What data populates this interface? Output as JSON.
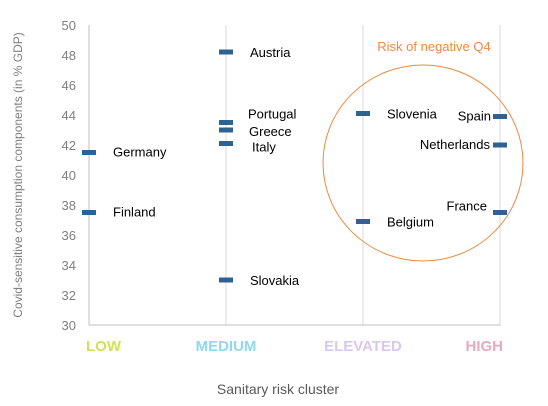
{
  "chart_data": {
    "type": "scatter",
    "xlabel": "Sanitary risk cluster",
    "ylabel": "Covid-sensitive consumption components  (in % GDP)",
    "ylim": [
      30,
      50
    ],
    "yticks": [
      "30",
      "32",
      "34",
      "36",
      "38",
      "40",
      "42",
      "44",
      "46",
      "48",
      "50"
    ],
    "grid": "vertical lines at categories",
    "categories": [
      {
        "label": "LOW",
        "color": "#d4e157"
      },
      {
        "label": "MEDIUM",
        "color": "#8fd8f2"
      },
      {
        "label": "ELEVATED",
        "color": "#d9c8ec"
      },
      {
        "label": "HIGH",
        "color": "#e8a9bf"
      }
    ],
    "marker_color": "#2e6391",
    "points": [
      {
        "country": "Germany",
        "category": "LOW",
        "value": 41.5
      },
      {
        "country": "Finland",
        "category": "LOW",
        "value": 37.5
      },
      {
        "country": "Austria",
        "category": "MEDIUM",
        "value": 48.2
      },
      {
        "country": "Portugal",
        "category": "MEDIUM",
        "value": 43.5
      },
      {
        "country": "Greece",
        "category": "MEDIUM",
        "value": 43.0
      },
      {
        "country": "Italy",
        "category": "MEDIUM",
        "value": 42.1
      },
      {
        "country": "Slovakia",
        "category": "MEDIUM",
        "value": 33.0
      },
      {
        "country": "Slovenia",
        "category": "ELEVATED",
        "value": 44.1
      },
      {
        "country": "Belgium",
        "category": "ELEVATED",
        "value": 36.9
      },
      {
        "country": "Spain",
        "category": "HIGH",
        "value": 43.9
      },
      {
        "country": "Netherlands",
        "category": "HIGH",
        "value": 42.0
      },
      {
        "country": "France",
        "category": "HIGH",
        "value": 37.5
      }
    ],
    "annotation": {
      "text": "Risk of negative Q4",
      "color": "#f0883e"
    }
  }
}
